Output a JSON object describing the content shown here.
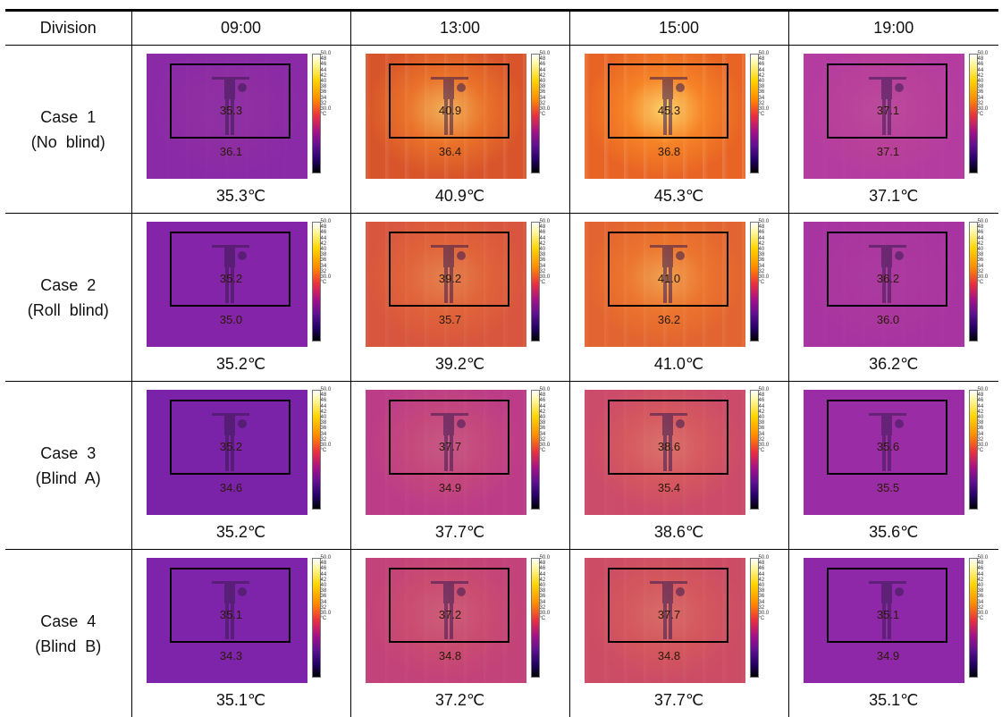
{
  "table": {
    "header": [
      "Division",
      "09:00",
      "13:00",
      "15:00",
      "19:00"
    ],
    "rows": [
      {
        "label_line1": "Case  1",
        "label_line2": "(No  blind)",
        "cells": [
          {
            "inside": "35.3",
            "outside": "36.1",
            "caption": "35.3℃",
            "tone": "#8a2aa6",
            "glow": 0.05
          },
          {
            "inside": "40.9",
            "outside": "36.4",
            "caption": "40.9℃",
            "tone": "#d8542a",
            "glow": 0.75
          },
          {
            "inside": "45.3",
            "outside": "36.8",
            "caption": "45.3℃",
            "tone": "#e86424",
            "glow": 1.0
          },
          {
            "inside": "37.1",
            "outside": "37.1",
            "caption": "37.1℃",
            "tone": "#b43ca0",
            "glow": 0.1
          }
        ]
      },
      {
        "label_line1": "Case  2",
        "label_line2": "(Roll  blind)",
        "cells": [
          {
            "inside": "35.2",
            "outside": "35.0",
            "caption": "35.2℃",
            "tone": "#8424a8",
            "glow": 0.0
          },
          {
            "inside": "39.2",
            "outside": "35.7",
            "caption": "39.2℃",
            "tone": "#d8563e",
            "glow": 0.35
          },
          {
            "inside": "41.0",
            "outside": "36.2",
            "caption": "41.0℃",
            "tone": "#e26430",
            "glow": 0.55
          },
          {
            "inside": "36.2",
            "outside": "36.0",
            "caption": "36.2℃",
            "tone": "#a834a2",
            "glow": 0.05
          }
        ]
      },
      {
        "label_line1": "Case  3",
        "label_line2": "(Blind  A)",
        "cells": [
          {
            "inside": "35.2",
            "outside": "34.6",
            "caption": "35.2℃",
            "tone": "#7a22a8",
            "glow": 0.0
          },
          {
            "inside": "37.7",
            "outside": "34.9",
            "caption": "37.7℃",
            "tone": "#bc3c88",
            "glow": 0.2
          },
          {
            "inside": "38.6",
            "outside": "35.4",
            "caption": "38.6℃",
            "tone": "#cc4a6a",
            "glow": 0.3
          },
          {
            "inside": "35.6",
            "outside": "35.5",
            "caption": "35.6℃",
            "tone": "#9a2ca6",
            "glow": 0.0
          }
        ]
      },
      {
        "label_line1": "Case  4",
        "label_line2": "(Blind  B)",
        "cells": [
          {
            "inside": "35.1",
            "outside": "34.3",
            "caption": "35.1℃",
            "tone": "#7e24aa",
            "glow": 0.0
          },
          {
            "inside": "37.2",
            "outside": "34.8",
            "caption": "37.2℃",
            "tone": "#c2427a",
            "glow": 0.2
          },
          {
            "inside": "37.7",
            "outside": "34.8",
            "caption": "37.7℃",
            "tone": "#cc4c66",
            "glow": 0.25
          },
          {
            "inside": "35.1",
            "outside": "34.9",
            "caption": "35.1℃",
            "tone": "#8e28a8",
            "glow": 0.0
          }
        ]
      }
    ],
    "scale_labels": [
      "50.0",
      "48",
      "46",
      "44",
      "42",
      "40",
      "38",
      "36",
      "34",
      "32",
      "30.0",
      "°C"
    ]
  }
}
